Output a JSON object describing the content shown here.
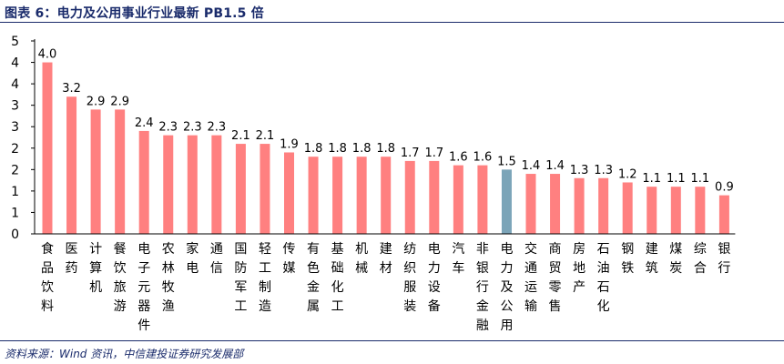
{
  "header": {
    "title": "图表 6：电力及公用事业行业最新 PB1.5 倍"
  },
  "footer": {
    "source": "资料来源：Wind 资讯，中信建投证券研究发展部"
  },
  "colors": {
    "bar": "#ff8080",
    "highlight": "#7ba4b8",
    "axis": "#000000",
    "title": "#1a2b6b"
  },
  "chart_data": {
    "type": "bar",
    "title": "图表 6：电力及公用事业行业最新 PB1.5 倍",
    "xlabel": "",
    "ylabel": "",
    "y_ticks": [
      "0",
      "1",
      "1",
      "2",
      "2",
      "3",
      "3",
      "4",
      "4",
      "5"
    ],
    "ylim": [
      0,
      4.5
    ],
    "grid": false,
    "legend": "none",
    "highlight_category": "电力及公用",
    "categories": [
      "食品饮料",
      "医药",
      "计算机",
      "餐饮旅游",
      "电子元器件",
      "农林牧渔",
      "家电",
      "通信",
      "国防军工",
      "轻工制造",
      "传媒",
      "有色金属",
      "基础化工",
      "机械",
      "建材",
      "纺织服装",
      "电力设备",
      "汽车",
      "非银行金融",
      "电力及公用",
      "交通运输",
      "商贸零售",
      "房地产",
      "石油石化",
      "钢铁",
      "建筑",
      "煤炭",
      "综合",
      "银行"
    ],
    "values": [
      4.0,
      3.2,
      2.9,
      2.9,
      2.4,
      2.3,
      2.3,
      2.3,
      2.1,
      2.1,
      1.9,
      1.8,
      1.8,
      1.8,
      1.8,
      1.7,
      1.7,
      1.6,
      1.6,
      1.5,
      1.4,
      1.4,
      1.3,
      1.3,
      1.2,
      1.1,
      1.1,
      1.1,
      0.9
    ],
    "data_labels": [
      "4.0",
      "3.2",
      "2.9",
      "2.9",
      "2.4",
      "2.3",
      "2.3",
      "2.3",
      "2.1",
      "2.1",
      "1.9",
      "1.8",
      "1.8",
      "1.8",
      "1.8",
      "1.7",
      "1.7",
      "1.6",
      "1.6",
      "1.5",
      "1.4",
      "1.4",
      "1.3",
      "1.3",
      "1.2",
      "1.1",
      "1.1",
      "1.1",
      "0.9"
    ]
  }
}
